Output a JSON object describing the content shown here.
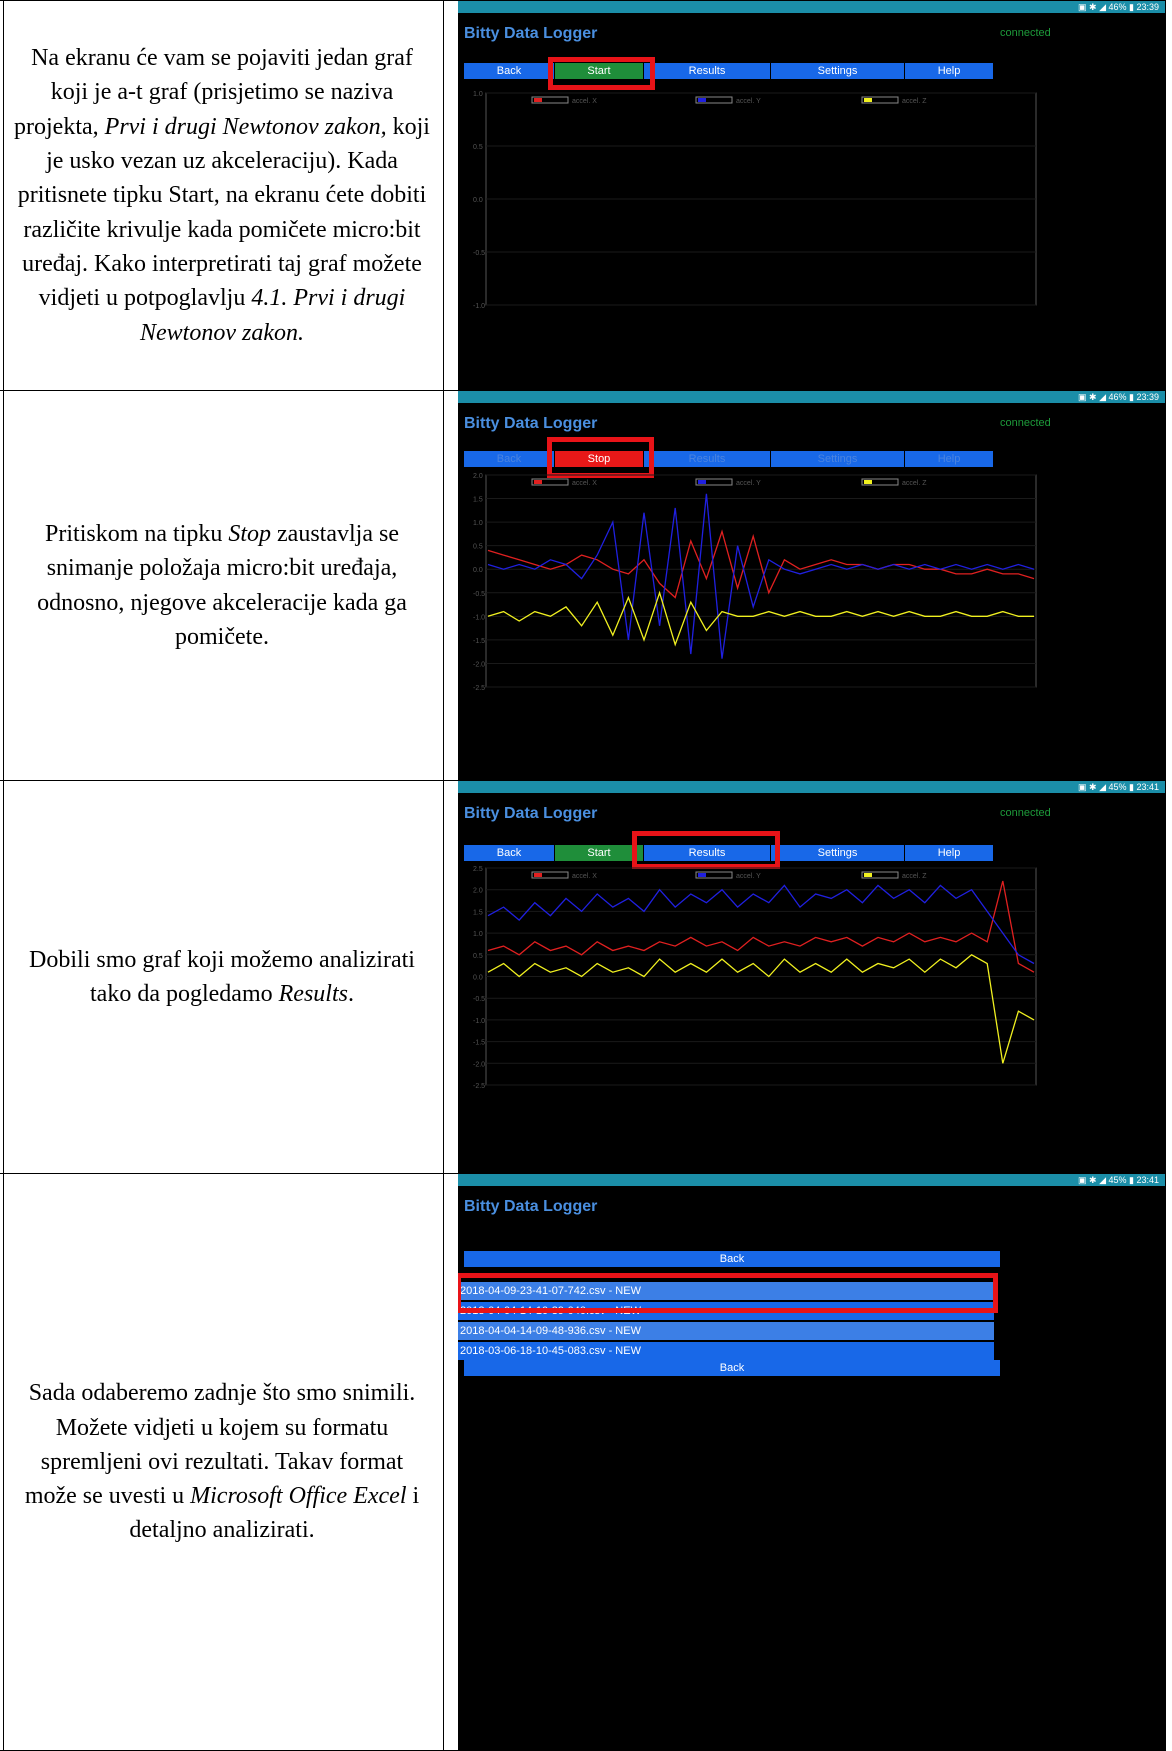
{
  "rows": [
    {
      "text": [
        "Na ekranu će vam se pojaviti jedan graf koji je a-t graf (prisjetimo se naziva projekta, ",
        "Prvi i drugi Newtonov zakon,",
        " koji je usko vezan uz akceleraciju). Kada pritisnete tipku Start, na ekranu ćete dobiti različite krivulje kada pomičete micro:bit uređaj. Kako interpretirati taj graf možete vidjeti u potpoglavlju ",
        "4.1. Prvi i drugi Newtonov zakon."
      ]
    },
    {
      "text": [
        "Pritiskom na tipku ",
        "Stop",
        " zaustavlja se snimanje položaja micro:bit uređaja, odnosno, njegove akceleracije kada ga pomičete."
      ]
    },
    {
      "text": [
        "Dobili smo graf koji možemo analizirati tako da pogledamo ",
        "Results",
        "."
      ]
    },
    {
      "text": [
        "Sada odaberemo zadnje što smo snimili. Možete vidjeti u kojem su formatu spremljeni ovi rezultati. Takav format može se uvesti u ",
        "Microsoft Office Excel",
        " i detaljno analizirati."
      ]
    }
  ],
  "app": {
    "title": "Bitty Data Logger",
    "connection_status": "connected",
    "nav": {
      "back": "Back",
      "start": "Start",
      "stop": "Stop",
      "results": "Results",
      "settings": "Settings",
      "help": "Help"
    },
    "legend": {
      "x": "accel. X",
      "y": "accel. Y",
      "z": "accel. Z"
    },
    "status_bar": {
      "s1": "▣ ✱ ◢ 46% ▮ 23:39",
      "s2": "▣ ✱ ◢ 46% ▮ 23:39",
      "s3": "▣ ✱ ◢ 45% ▮ 23:41",
      "s4": "▣ ✱ ◢ 45% ▮ 23:41"
    },
    "files": {
      "back_top": "Back",
      "back_bottom": "Back",
      "items": [
        "2018-04-09-23-41-07-742.csv - NEW",
        "2018-04-04-14-10-39-040.csv - NEW",
        "2018-04-04-14-09-48-936.csv - NEW",
        "2018-03-06-18-10-45-083.csv - NEW"
      ]
    }
  },
  "chart_data": [
    {
      "type": "line",
      "yticks": [
        "1.0",
        "0.5",
        "0.0",
        "-0.5",
        "-1.0"
      ],
      "ylim": [
        -1.0,
        1.0
      ],
      "series": [
        {
          "name": "accel. X",
          "color": "#e02020",
          "values": []
        },
        {
          "name": "accel. Y",
          "color": "#2020e0",
          "values": []
        },
        {
          "name": "accel. Z",
          "color": "#f0f020",
          "values": []
        }
      ]
    },
    {
      "type": "line",
      "yticks": [
        "2.0",
        "1.5",
        "1.0",
        "0.5",
        "0.0",
        "-0.5",
        "-1.0",
        "-1.5",
        "-2.0",
        "-2.5"
      ],
      "ylim": [
        -2.5,
        2.0
      ],
      "series": [
        {
          "name": "accel. X",
          "color": "#e02020",
          "values": [
            0.4,
            0.3,
            0.2,
            0.1,
            0.0,
            0.1,
            0.3,
            0.2,
            0.0,
            -0.1,
            0.2,
            -0.3,
            -0.6,
            0.6,
            -0.2,
            0.8,
            -0.4,
            0.7,
            -0.5,
            0.2,
            0.0,
            0.1,
            0.2,
            0.1,
            0.1,
            0.0,
            0.1,
            0.1,
            0.0,
            0.0,
            -0.1,
            -0.1,
            0.0,
            -0.1,
            -0.1,
            -0.2
          ]
        },
        {
          "name": "accel. Y",
          "color": "#2020e0",
          "values": [
            0.1,
            0.0,
            0.1,
            0.0,
            0.2,
            0.1,
            -0.2,
            0.3,
            1.0,
            -1.5,
            1.2,
            -1.2,
            1.3,
            -1.8,
            1.6,
            -1.9,
            0.5,
            -0.8,
            0.2,
            0.0,
            -0.1,
            0.0,
            0.1,
            0.0,
            0.1,
            0.0,
            0.1,
            0.0,
            0.1,
            0.0,
            0.1,
            0.0,
            0.1,
            0.0,
            0.1,
            0.0
          ]
        },
        {
          "name": "accel. Z",
          "color": "#f0f020",
          "values": [
            -1.0,
            -0.9,
            -1.1,
            -0.9,
            -1.0,
            -0.8,
            -1.2,
            -0.7,
            -1.4,
            -0.6,
            -1.5,
            -0.5,
            -1.6,
            -0.7,
            -1.3,
            -0.9,
            -1.0,
            -1.0,
            -0.9,
            -1.0,
            -0.9,
            -1.0,
            -1.0,
            -0.9,
            -1.0,
            -0.9,
            -1.0,
            -0.9,
            -1.0,
            -1.0,
            -0.9,
            -1.0,
            -1.0,
            -0.9,
            -1.0,
            -1.0
          ]
        }
      ]
    },
    {
      "type": "line",
      "yticks": [
        "2.5",
        "2.0",
        "1.5",
        "1.0",
        "0.5",
        "0.0",
        "-0.5",
        "-1.0",
        "-1.5",
        "-2.0",
        "-2.5"
      ],
      "ylim": [
        -2.5,
        2.5
      ],
      "series": [
        {
          "name": "accel. X",
          "color": "#e02020",
          "values": [
            0.6,
            0.7,
            0.5,
            0.8,
            0.6,
            0.7,
            0.5,
            0.8,
            0.6,
            0.7,
            0.6,
            0.8,
            0.7,
            0.9,
            0.7,
            0.8,
            0.6,
            0.9,
            0.7,
            0.8,
            0.7,
            0.9,
            0.8,
            0.9,
            0.7,
            0.9,
            0.8,
            1.0,
            0.8,
            0.9,
            0.8,
            1.0,
            0.8,
            2.2,
            0.3,
            0.1
          ]
        },
        {
          "name": "accel. Y",
          "color": "#2020e0",
          "values": [
            1.4,
            1.6,
            1.3,
            1.7,
            1.4,
            1.8,
            1.5,
            1.9,
            1.6,
            1.8,
            1.5,
            2.0,
            1.6,
            1.9,
            1.7,
            2.0,
            1.6,
            1.9,
            1.7,
            2.1,
            1.6,
            1.9,
            1.8,
            2.0,
            1.7,
            2.1,
            1.8,
            2.0,
            1.7,
            2.1,
            1.8,
            2.0,
            1.5,
            1.0,
            0.5,
            0.3
          ]
        },
        {
          "name": "accel. Z",
          "color": "#f0f020",
          "values": [
            0.1,
            0.3,
            0.0,
            0.3,
            0.1,
            0.2,
            0.0,
            0.3,
            0.1,
            0.2,
            0.0,
            0.4,
            0.1,
            0.3,
            0.1,
            0.4,
            0.1,
            0.3,
            0.0,
            0.4,
            0.1,
            0.3,
            0.1,
            0.4,
            0.1,
            0.3,
            0.2,
            0.4,
            0.1,
            0.4,
            0.2,
            0.5,
            0.3,
            -2.0,
            -0.8,
            -1.0
          ]
        }
      ]
    }
  ]
}
